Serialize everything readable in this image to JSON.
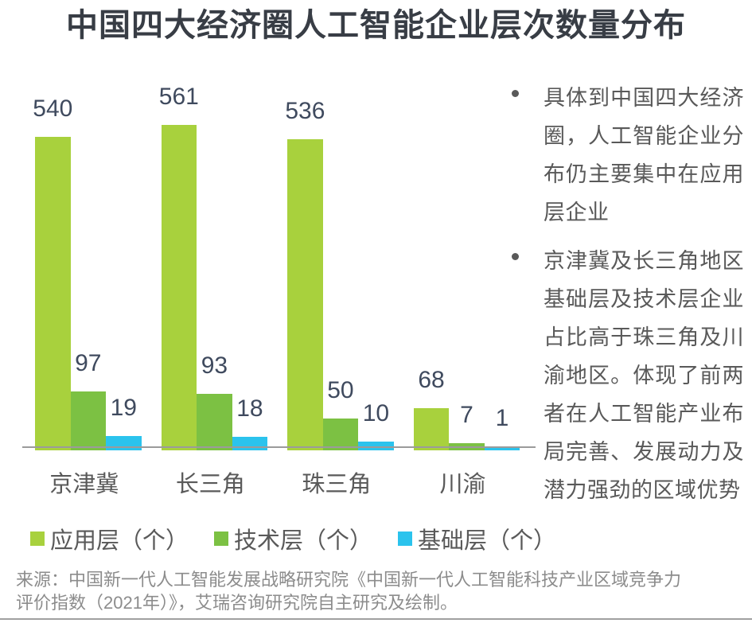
{
  "page": {
    "title": "中国四大经济圈人工智能企业层次数量分布",
    "source": "来源：中国新一代人工智能发展战略研究院《中国新一代人工智能科技产业区域竞争力评价指数（2021年）》，艾瑞咨询研究院自主研究及绘制。"
  },
  "chart_data": {
    "type": "bar",
    "title": "中国四大经济圈人工智能企业层次数量分布",
    "categories": [
      "京津冀",
      "长三角",
      "珠三角",
      "川渝"
    ],
    "series": [
      {
        "name": "应用层（个）",
        "color": "#a8d13d",
        "values": [
          540,
          561,
          536,
          68
        ]
      },
      {
        "name": "技术层（个）",
        "color": "#7cc143",
        "values": [
          97,
          93,
          50,
          7
        ]
      },
      {
        "name": "基础层（个）",
        "color": "#2bc3ed",
        "values": [
          19,
          18,
          10,
          1
        ]
      }
    ],
    "ylim": [
      0,
      600
    ],
    "grid": false,
    "axis_labels_shown": false,
    "value_labels": true,
    "legend_position": "bottom"
  },
  "notes": {
    "bullets": [
      "具体到中国四大经济圈，人工智能企业分布仍主要集中在应用层企业",
      "京津冀及长三角地区基础层及技术层企业占比高于珠三角及川渝地区。体现了前两者在人工智能产业布局完善、发展动力及潜力强劲的区域优势"
    ]
  },
  "colors": {
    "title_text": "#383d45",
    "value_label_text": "#3f4a5e",
    "gray_text": "#595959",
    "source_text": "#8c8c8c",
    "axis_line": "#9b9b9b"
  }
}
